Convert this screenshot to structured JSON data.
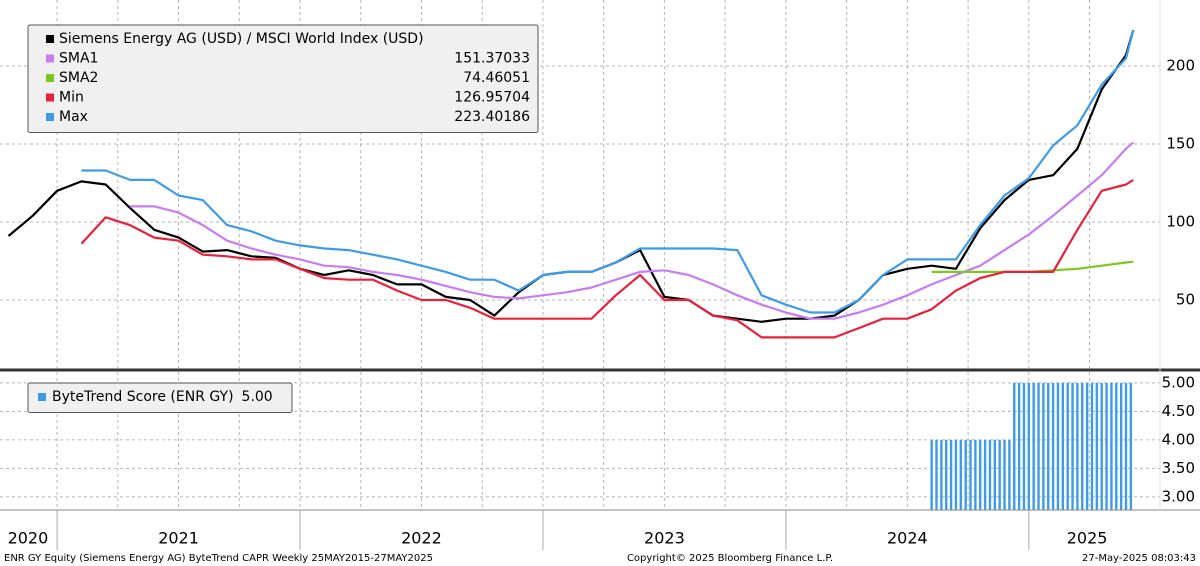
{
  "chart_data": [
    {
      "type": "line",
      "legend": "upper left",
      "xlim": [
        2020.765,
        2025.54
      ],
      "ylim": [
        6.4,
        242.3
      ],
      "yticks": [
        50,
        100,
        150,
        200
      ],
      "grid": true,
      "xgrid": [
        2021,
        2021.25,
        2021.5,
        2021.75,
        2022,
        2022.25,
        2022.5,
        2022.75,
        2023,
        2023.25,
        2023.5,
        2023.75,
        2024,
        2024.25,
        2024.5,
        2024.75,
        2025,
        2025.25
      ],
      "x": [
        2020.8,
        2020.9,
        2021.0,
        2021.1,
        2021.2,
        2021.3,
        2021.4,
        2021.5,
        2021.6,
        2021.7,
        2021.8,
        2021.9,
        2022.0,
        2022.1,
        2022.2,
        2022.3,
        2022.4,
        2022.5,
        2022.6,
        2022.7,
        2022.8,
        2022.9,
        2023.0,
        2023.1,
        2023.2,
        2023.3,
        2023.4,
        2023.5,
        2023.6,
        2023.7,
        2023.8,
        2023.9,
        2024.0,
        2024.1,
        2024.2,
        2024.3,
        2024.4,
        2024.5,
        2024.6,
        2024.7,
        2024.8,
        2024.9,
        2025.0,
        2025.1,
        2025.2,
        2025.3,
        2025.4,
        2025.43
      ],
      "series": [
        {
          "name": "Siemens Energy AG (USD) / MSCI World Index (USD)",
          "color": "#000000",
          "values": [
            91,
            104,
            120,
            126,
            124,
            109,
            95,
            90,
            81,
            82,
            78,
            77,
            70,
            66,
            69,
            66,
            60,
            60,
            52,
            50,
            40,
            55,
            66,
            68,
            68,
            74,
            82,
            52,
            50,
            40,
            38,
            36,
            38,
            38,
            40,
            50,
            66,
            70,
            72,
            70,
            96,
            114,
            127,
            130,
            147,
            185,
            207,
            223
          ]
        },
        {
          "name": "SMA1",
          "color": "#c77cf0",
          "last": 151.37033,
          "values": [
            null,
            null,
            null,
            null,
            null,
            110,
            110,
            106,
            98,
            88,
            83,
            79,
            76,
            72,
            71,
            68,
            66,
            63,
            59,
            55,
            52,
            51,
            53,
            55,
            58,
            63,
            68,
            69,
            66,
            60,
            53,
            47,
            42,
            38,
            38,
            42,
            47,
            53,
            60,
            66,
            72,
            82,
            92,
            104,
            117,
            130,
            147,
            151
          ]
        },
        {
          "name": "SMA2",
          "color": "#7cc820",
          "last": 74.46051,
          "values": [
            null,
            null,
            null,
            null,
            null,
            null,
            null,
            null,
            null,
            null,
            null,
            null,
            null,
            null,
            null,
            null,
            null,
            null,
            null,
            null,
            null,
            null,
            null,
            null,
            null,
            null,
            null,
            null,
            null,
            null,
            null,
            null,
            null,
            null,
            null,
            null,
            null,
            null,
            68,
            68,
            68,
            68,
            68,
            69,
            70,
            72,
            74,
            74.5
          ]
        },
        {
          "name": "Min",
          "color": "#e8213b",
          "last": 126.95704,
          "values": [
            null,
            null,
            null,
            86,
            103,
            98,
            90,
            88,
            79,
            78,
            76,
            76,
            70,
            64,
            63,
            63,
            56,
            50,
            50,
            45,
            38,
            38,
            38,
            38,
            38,
            53,
            66,
            50,
            50,
            40,
            37,
            26,
            26,
            26,
            26,
            32,
            38,
            38,
            44,
            56,
            64,
            68,
            68,
            68,
            95,
            120,
            124,
            127
          ]
        },
        {
          "name": "Max",
          "color": "#3d9be9",
          "last": 223.40186,
          "values": [
            null,
            null,
            null,
            133,
            133,
            127,
            127,
            117,
            114,
            98,
            94,
            88,
            85,
            83,
            82,
            79,
            76,
            72,
            68,
            63,
            63,
            56,
            66,
            68,
            68,
            74,
            83,
            83,
            83,
            83,
            82,
            53,
            47,
            42,
            42,
            50,
            66,
            76,
            76,
            76,
            98,
            117,
            128,
            149,
            162,
            188,
            205,
            223
          ]
        }
      ]
    },
    {
      "type": "bar",
      "legend": "upper left",
      "xlim": [
        2020.765,
        2025.54
      ],
      "ylim": [
        2.77,
        5.19
      ],
      "yticks": [
        {
          "value": 3,
          "label": "3.00"
        },
        {
          "value": 3.5,
          "label": "3.50"
        },
        {
          "value": 4,
          "label": "4.00"
        },
        {
          "value": 4.5,
          "label": "4.50"
        },
        {
          "value": 5,
          "label": "5.00"
        }
      ],
      "grid": true,
      "xgrid": [
        2021,
        2021.25,
        2021.5,
        2021.75,
        2022,
        2022.25,
        2022.5,
        2022.75,
        2023,
        2023.25,
        2023.5,
        2023.75,
        2024,
        2024.25,
        2024.5,
        2024.75,
        2025,
        2025.25
      ],
      "year_ticks": [
        2021,
        2022,
        2023,
        2024,
        2025
      ],
      "xticks": [
        {
          "value": 2020.88,
          "label": "2020"
        },
        {
          "value": 2021.5,
          "label": "2021"
        },
        {
          "value": 2022.5,
          "label": "2022"
        },
        {
          "value": 2023.5,
          "label": "2023"
        },
        {
          "value": 2024.5,
          "label": "2024"
        },
        {
          "value": 2025.24,
          "label": "2025"
        }
      ],
      "x": [
        2024.6,
        2024.62,
        2024.64,
        2024.66,
        2024.68,
        2024.7,
        2024.72,
        2024.74,
        2024.76,
        2024.78,
        2024.8,
        2024.82,
        2024.84,
        2024.86,
        2024.88,
        2024.9,
        2024.92,
        2024.94,
        2024.96,
        2024.98,
        2025.0,
        2025.02,
        2025.04,
        2025.06,
        2025.08,
        2025.1,
        2025.12,
        2025.14,
        2025.16,
        2025.18,
        2025.2,
        2025.22,
        2025.24,
        2025.26,
        2025.28,
        2025.3,
        2025.32,
        2025.34,
        2025.36,
        2025.38,
        2025.4,
        2025.42
      ],
      "series": [
        {
          "name": "ByteTrend Score (ENR GY)",
          "color": "#3d9be9",
          "last": {
            "value": 5,
            "label": "5.00"
          },
          "values": [
            4,
            4,
            4,
            4,
            4,
            4,
            4,
            4,
            4,
            4,
            4,
            4,
            4,
            4,
            4,
            4,
            4,
            5,
            5,
            5,
            5,
            5,
            5,
            5,
            5,
            5,
            5,
            5,
            5,
            5,
            5,
            5,
            5,
            5,
            5,
            5,
            5,
            5,
            5,
            5,
            5,
            5
          ]
        }
      ]
    }
  ],
  "footer": {
    "left": "ENR GY Equity (Siemens Energy AG) ByteTrend CAPR  Weekly 25MAY2015-27MAY2025",
    "center": "Copyright© 2025 Bloomberg Finance L.P.",
    "right": "27-May-2025 08:03:43"
  }
}
